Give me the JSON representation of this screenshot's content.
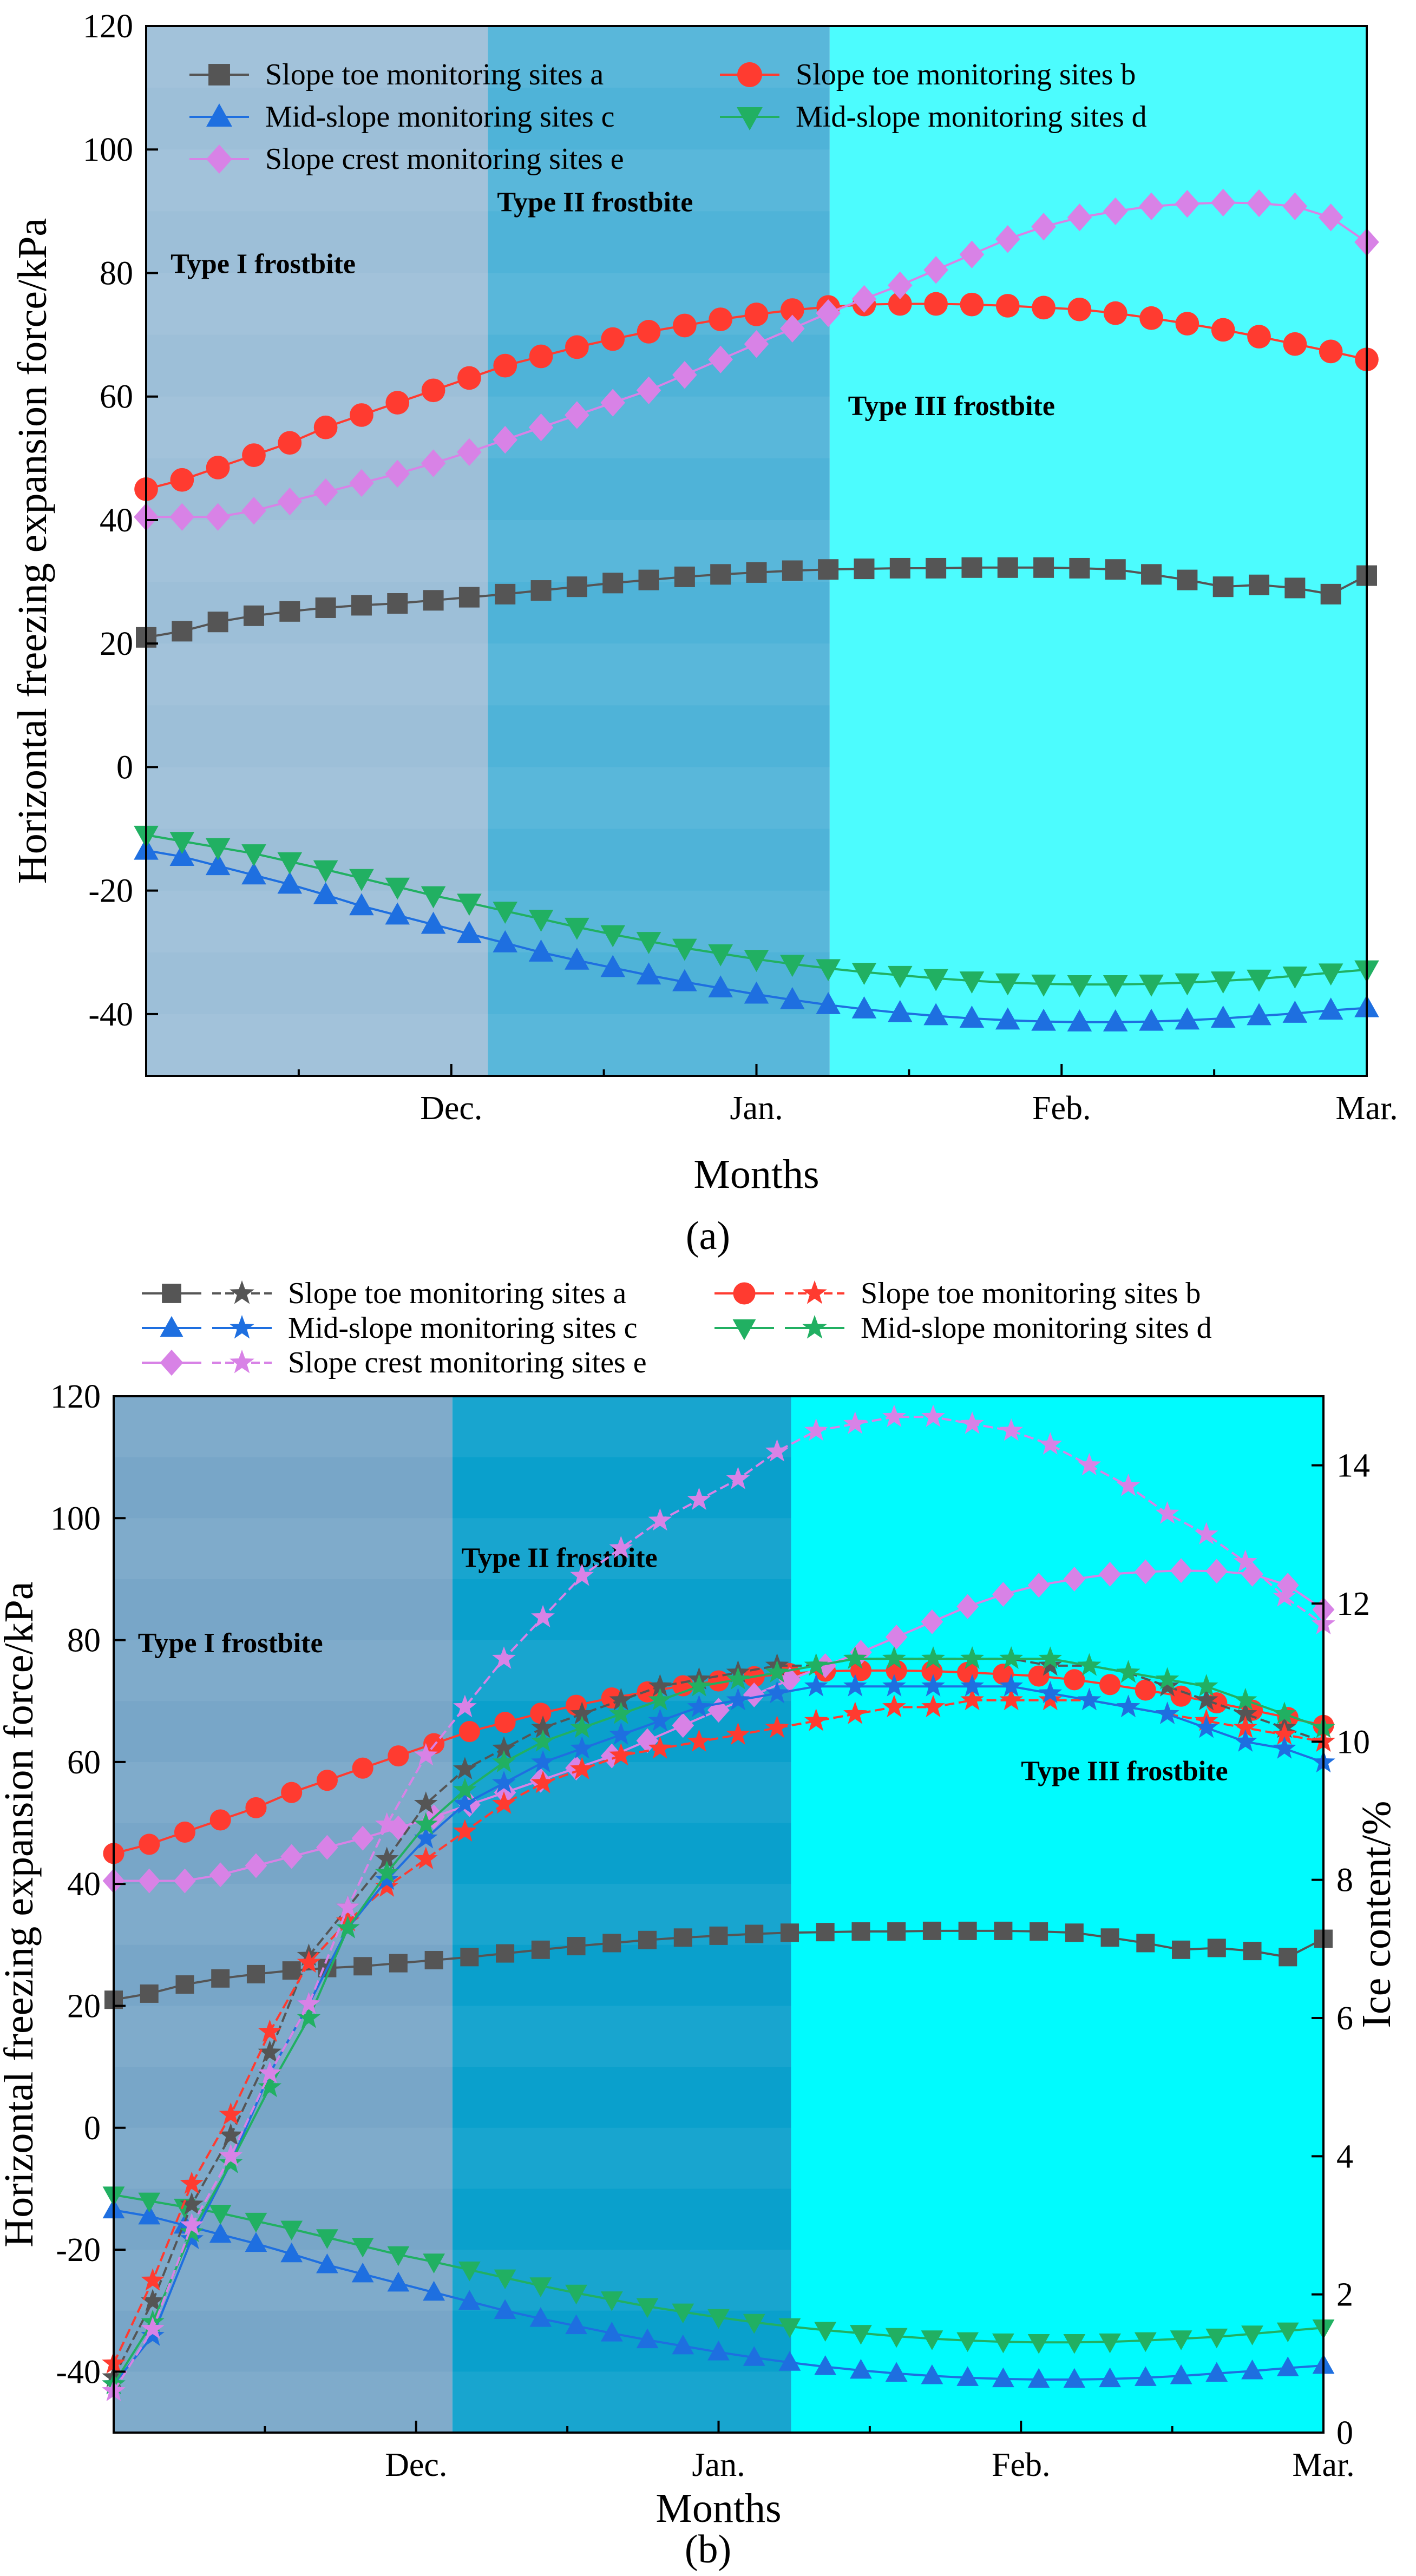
{
  "chart_data": [
    {
      "id": "a",
      "type": "line",
      "caption": "(a)",
      "xlabel": "Months",
      "ylabel": "Horizontal freezing expansion force/kPa",
      "ylim": [
        -50,
        120
      ],
      "yticks": [
        -40,
        -20,
        0,
        20,
        40,
        60,
        80,
        100,
        120
      ],
      "x_range": [
        0,
        4
      ],
      "xticks": [
        {
          "x": 1,
          "label": "Dec."
        },
        {
          "x": 2,
          "label": "Jan."
        },
        {
          "x": 3,
          "label": "Feb."
        },
        {
          "x": 4,
          "label": "Mar."
        }
      ],
      "regions": [
        {
          "label": "Type I frostbite",
          "from": 0,
          "to": 1.12,
          "color": "#9dbfd8",
          "label_x": 0.08,
          "label_y": 80
        },
        {
          "label": "Type II frostbite",
          "from": 1.12,
          "to": 2.24,
          "color": "#4fb3d8",
          "label_x": 1.15,
          "label_y": 90
        },
        {
          "label": "Type III frostbite",
          "from": 2.24,
          "to": 4,
          "color": "#4cfcfe",
          "label_x": 2.3,
          "label_y": 57
        }
      ],
      "series": [
        {
          "name": "Slope toe monitoring sites a",
          "color": "#555555",
          "marker": "square",
          "values": [
            21,
            22,
            23.5,
            24.5,
            25.2,
            25.8,
            26.2,
            26.5,
            27,
            27.5,
            28,
            28.6,
            29.2,
            29.8,
            30.3,
            30.8,
            31.2,
            31.5,
            31.8,
            32,
            32.1,
            32.2,
            32.2,
            32.3,
            32.3,
            32.3,
            32.2,
            32,
            31.2,
            30.3,
            29.2,
            29.5,
            29,
            28,
            31
          ]
        },
        {
          "name": "Slope toe monitoring sites b",
          "color": "#ff3b30",
          "marker": "circle",
          "values": [
            45,
            46.5,
            48.5,
            50.5,
            52.5,
            55,
            57,
            59,
            61,
            63,
            65,
            66.5,
            68,
            69.3,
            70.5,
            71.5,
            72.5,
            73.3,
            74,
            74.5,
            74.9,
            75,
            75,
            74.9,
            74.7,
            74.4,
            74.1,
            73.5,
            72.7,
            71.8,
            70.8,
            69.7,
            68.5,
            67.3,
            66
          ]
        },
        {
          "name": "Mid-slope monitoring sites c",
          "color": "#1e6fe0",
          "marker": "triangle",
          "values": [
            -13.5,
            -14.5,
            -16,
            -17.5,
            -19,
            -20.7,
            -22.5,
            -24,
            -25.5,
            -27,
            -28.5,
            -30,
            -31.3,
            -32.5,
            -33.7,
            -34.8,
            -35.8,
            -36.8,
            -37.7,
            -38.5,
            -39.2,
            -39.8,
            -40.3,
            -40.7,
            -41,
            -41.2,
            -41.3,
            -41.3,
            -41.2,
            -41,
            -40.7,
            -40.3,
            -39.9,
            -39.4,
            -39
          ]
        },
        {
          "name": "Mid-slope monitoring sites d",
          "color": "#21b062",
          "marker": "triangle-down",
          "values": [
            -11,
            -12,
            -13,
            -14,
            -15.3,
            -16.6,
            -18,
            -19.4,
            -20.8,
            -22,
            -23.3,
            -24.6,
            -25.9,
            -27.1,
            -28.2,
            -29.3,
            -30.2,
            -31.1,
            -31.9,
            -32.6,
            -33.2,
            -33.7,
            -34.2,
            -34.6,
            -34.9,
            -35.1,
            -35.2,
            -35.2,
            -35.1,
            -34.9,
            -34.6,
            -34.3,
            -33.8,
            -33.3,
            -32.8
          ]
        },
        {
          "name": "Slope crest monitoring sites e",
          "color": "#d882e6",
          "marker": "diamond",
          "values": [
            40.5,
            40.5,
            40.5,
            41.5,
            43,
            44.5,
            46,
            47.5,
            49.2,
            51,
            53,
            55,
            57,
            59,
            61,
            63.5,
            66,
            68.5,
            71,
            73.5,
            75.8,
            78,
            80.5,
            83,
            85.5,
            87.5,
            89,
            90,
            90.8,
            91.2,
            91.4,
            91.3,
            90.8,
            89,
            85
          ]
        }
      ]
    },
    {
      "id": "b",
      "type": "line",
      "caption": "(b)",
      "xlabel": "Months",
      "ylabel": "Horizontal freezing expansion force/kPa",
      "y2label": "Ice content/%",
      "ylim": [
        -50,
        120
      ],
      "y2lim": [
        0,
        15
      ],
      "yticks": [
        -40,
        -20,
        0,
        20,
        40,
        60,
        80,
        100,
        120
      ],
      "y2ticks": [
        0,
        2,
        4,
        6,
        8,
        10,
        12,
        14
      ],
      "x_range": [
        0,
        4
      ],
      "xticks": [
        {
          "x": 1,
          "label": "Dec."
        },
        {
          "x": 2,
          "label": "Jan."
        },
        {
          "x": 3,
          "label": "Feb."
        },
        {
          "x": 4,
          "label": "Mar."
        }
      ],
      "regions": [
        {
          "label": "Type I frostbite",
          "from": 0,
          "to": 1.12,
          "color": "#78a6c8",
          "label_x": 0.08,
          "label_y": 78
        },
        {
          "label": "Type II frostbite",
          "from": 1.12,
          "to": 2.24,
          "color": "#0aa0cc",
          "label_x": 1.15,
          "label_y": 92
        },
        {
          "label": "Type III frostbite",
          "from": 2.24,
          "to": 4,
          "color": "#00fbfe",
          "label_x": 3.0,
          "label_y": 57
        }
      ],
      "series": [
        {
          "name": "Slope toe monitoring sites a",
          "color": "#555555",
          "marker": "square",
          "axis": "left",
          "values": [
            21,
            22,
            23.5,
            24.5,
            25.2,
            25.8,
            26.2,
            26.5,
            27,
            27.5,
            28,
            28.6,
            29.2,
            29.8,
            30.3,
            30.8,
            31.2,
            31.5,
            31.8,
            32,
            32.1,
            32.2,
            32.2,
            32.3,
            32.3,
            32.3,
            32.2,
            32,
            31.2,
            30.3,
            29.2,
            29.5,
            29,
            28,
            31
          ]
        },
        {
          "name": "Slope toe monitoring sites b",
          "color": "#ff3b30",
          "marker": "circle",
          "axis": "left",
          "values": [
            45,
            46.5,
            48.5,
            50.5,
            52.5,
            55,
            57,
            59,
            61,
            63,
            65,
            66.5,
            68,
            69.3,
            70.5,
            71.5,
            72.5,
            73.3,
            74,
            74.5,
            74.9,
            75,
            75,
            74.9,
            74.7,
            74.4,
            74.1,
            73.5,
            72.7,
            71.8,
            70.8,
            69.7,
            68.5,
            67.3,
            66
          ]
        },
        {
          "name": "Mid-slope monitoring sites c",
          "color": "#1e6fe0",
          "marker": "triangle",
          "axis": "left",
          "values": [
            -13.5,
            -14.5,
            -16,
            -17.5,
            -19,
            -20.7,
            -22.5,
            -24,
            -25.5,
            -27,
            -28.5,
            -30,
            -31.3,
            -32.5,
            -33.7,
            -34.8,
            -35.8,
            -36.8,
            -37.7,
            -38.5,
            -39.2,
            -39.8,
            -40.3,
            -40.7,
            -41,
            -41.2,
            -41.3,
            -41.3,
            -41.2,
            -41,
            -40.7,
            -40.3,
            -39.9,
            -39.4,
            -39
          ]
        },
        {
          "name": "Mid-slope monitoring sites d",
          "color": "#21b062",
          "marker": "triangle-down",
          "axis": "left",
          "values": [
            -11,
            -12,
            -13,
            -14,
            -15.3,
            -16.6,
            -18,
            -19.4,
            -20.8,
            -22,
            -23.3,
            -24.6,
            -25.9,
            -27.1,
            -28.2,
            -29.3,
            -30.2,
            -31.1,
            -31.9,
            -32.6,
            -33.2,
            -33.7,
            -34.2,
            -34.6,
            -34.9,
            -35.1,
            -35.2,
            -35.2,
            -35.1,
            -34.9,
            -34.6,
            -34.3,
            -33.8,
            -33.3,
            -32.8
          ]
        },
        {
          "name": "Slope crest monitoring sites e",
          "color": "#d882e6",
          "marker": "diamond",
          "axis": "left",
          "values": [
            40.5,
            40.5,
            40.5,
            41.5,
            43,
            44.5,
            46,
            47.5,
            49.2,
            51,
            53,
            55,
            57,
            59,
            61,
            63.5,
            66,
            68.5,
            71,
            73.5,
            75.8,
            78,
            80.5,
            83,
            85.5,
            87.5,
            89,
            90,
            90.8,
            91.2,
            91.4,
            91.3,
            90.8,
            89,
            85
          ]
        },
        {
          "name": "Slope toe monitoring sites a",
          "color": "#555555",
          "marker": "star",
          "axis": "right",
          "dash": true,
          "values": [
            0.8,
            1.9,
            3.3,
            4.3,
            5.5,
            6.9,
            7.6,
            8.3,
            9.1,
            9.6,
            9.9,
            10.2,
            10.4,
            10.6,
            10.8,
            10.9,
            11.0,
            11.1,
            11.1,
            11.2,
            11.2,
            11.2,
            11.2,
            11.2,
            11.1,
            11.1,
            11.0,
            10.8,
            10.6,
            10.4,
            10.2,
            10.0
          ]
        },
        {
          "name": "Slope toe monitoring sites b",
          "color": "#ff3b30",
          "marker": "star",
          "axis": "right",
          "dash": true,
          "values": [
            1.0,
            2.2,
            3.6,
            4.6,
            5.8,
            6.8,
            7.4,
            7.9,
            8.3,
            8.7,
            9.1,
            9.4,
            9.6,
            9.8,
            9.9,
            10.0,
            10.1,
            10.2,
            10.3,
            10.4,
            10.5,
            10.5,
            10.6,
            10.6,
            10.6,
            10.6,
            10.5,
            10.4,
            10.3,
            10.2,
            10.1,
            10.0
          ]
        },
        {
          "name": "Mid-slope monitoring sites c",
          "color": "#1e6fe0",
          "marker": "star",
          "axis": "right",
          "values": [
            0.7,
            1.4,
            2.8,
            3.9,
            5.2,
            6.2,
            7.3,
            8.0,
            8.6,
            9.1,
            9.4,
            9.7,
            9.9,
            10.1,
            10.3,
            10.5,
            10.6,
            10.7,
            10.8,
            10.8,
            10.8,
            10.8,
            10.8,
            10.8,
            10.7,
            10.6,
            10.5,
            10.4,
            10.2,
            10.0,
            9.9,
            9.7
          ]
        },
        {
          "name": "Mid-slope monitoring sites d",
          "color": "#21b062",
          "marker": "star",
          "axis": "right",
          "values": [
            0.7,
            1.6,
            2.9,
            3.9,
            5.0,
            6.0,
            7.3,
            8.1,
            8.8,
            9.3,
            9.7,
            10.0,
            10.2,
            10.4,
            10.6,
            10.8,
            10.9,
            11.0,
            11.1,
            11.2,
            11.2,
            11.2,
            11.2,
            11.2,
            11.2,
            11.1,
            11.0,
            10.9,
            10.8,
            10.6,
            10.4,
            10.2
          ]
        },
        {
          "name": "Slope crest monitoring sites e",
          "color": "#d882e6",
          "marker": "star",
          "axis": "right",
          "dash": true,
          "values": [
            0.6,
            1.5,
            3.0,
            4.0,
            5.2,
            6.2,
            7.6,
            8.8,
            9.8,
            10.5,
            11.2,
            11.8,
            12.4,
            12.8,
            13.2,
            13.5,
            13.8,
            14.2,
            14.5,
            14.6,
            14.7,
            14.7,
            14.6,
            14.5,
            14.3,
            14.0,
            13.7,
            13.3,
            13.0,
            12.6,
            12.1,
            11.7
          ]
        }
      ]
    }
  ]
}
